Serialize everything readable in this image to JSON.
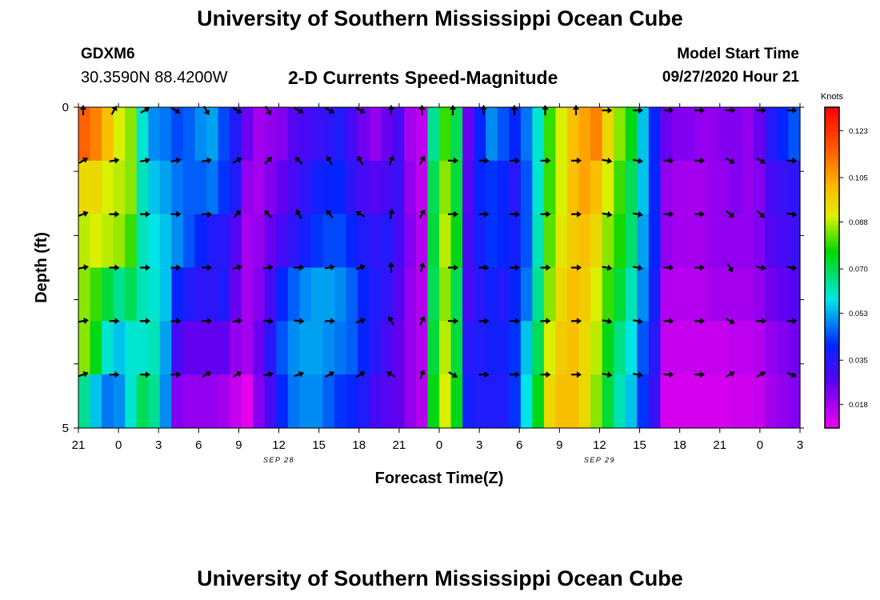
{
  "header": {
    "site_title": "University of Southern Mississippi Ocean Cube",
    "station_id": "GDXM6",
    "station_coords": "30.3590N 88.4200W",
    "chart_title": "2-D Currents Speed-Magnitude",
    "model_label": "Model Start Time",
    "model_time": "09/27/2020 Hour 21"
  },
  "footer": {
    "site_title": "University of Southern Mississippi Ocean Cube"
  },
  "chart_data": {
    "type": "heatmap",
    "title": "2-D Currents Speed-Magnitude",
    "xlabel": "Forecast Time(Z)",
    "ylabel": "Depth (ft)",
    "x_tick_labels": [
      "21",
      "0",
      "3",
      "6",
      "9",
      "12",
      "15",
      "18",
      "21",
      "0",
      "3",
      "6",
      "9",
      "12",
      "15",
      "18",
      "21",
      "0",
      "3"
    ],
    "date_labels": [
      {
        "text": "SEP 28",
        "tick_index": 5
      },
      {
        "text": "SEP 29",
        "tick_index": 13
      }
    ],
    "y_tick_labels": [
      "0",
      "",
      "",
      "",
      "",
      "5"
    ],
    "depth_range_ft": [
      0,
      5
    ],
    "colorbar": {
      "unit_label": "Knots",
      "ticks": [
        "0.123",
        "0.105",
        "0.088",
        "0.070",
        "0.053",
        "0.035",
        "0.018"
      ],
      "min": 0.009,
      "max": 0.132
    },
    "speed_knots_by_depth": [
      [
        0.115,
        0.11,
        0.1,
        0.09,
        0.085,
        0.06,
        0.05,
        0.048,
        0.044,
        0.046,
        0.05,
        0.052,
        0.044,
        0.036,
        0.025,
        0.018,
        0.02,
        0.022,
        0.028,
        0.03,
        0.032,
        0.034,
        0.036,
        0.03,
        0.024,
        0.02,
        0.025,
        0.03,
        0.018,
        0.015,
        0.065,
        0.08,
        0.07,
        0.025,
        0.04,
        0.05,
        0.045,
        0.04,
        0.048,
        0.06,
        0.08,
        0.09,
        0.1,
        0.105,
        0.11,
        0.095,
        0.085,
        0.075,
        0.055,
        0.04,
        0.025,
        0.022,
        0.022,
        0.02,
        0.02,
        0.022,
        0.022,
        0.02,
        0.025,
        0.035,
        0.04,
        0.045
      ],
      [
        0.095,
        0.095,
        0.09,
        0.088,
        0.085,
        0.062,
        0.055,
        0.052,
        0.048,
        0.046,
        0.046,
        0.048,
        0.042,
        0.036,
        0.02,
        0.018,
        0.022,
        0.026,
        0.03,
        0.034,
        0.038,
        0.04,
        0.04,
        0.034,
        0.03,
        0.028,
        0.03,
        0.032,
        0.02,
        0.015,
        0.07,
        0.085,
        0.072,
        0.028,
        0.04,
        0.042,
        0.04,
        0.035,
        0.045,
        0.06,
        0.08,
        0.09,
        0.1,
        0.105,
        0.1,
        0.09,
        0.08,
        0.07,
        0.055,
        0.04,
        0.02,
        0.018,
        0.018,
        0.018,
        0.02,
        0.02,
        0.022,
        0.02,
        0.022,
        0.03,
        0.032,
        0.034
      ],
      [
        0.088,
        0.09,
        0.088,
        0.086,
        0.08,
        0.062,
        0.058,
        0.055,
        0.05,
        0.045,
        0.04,
        0.036,
        0.035,
        0.028,
        0.018,
        0.02,
        0.025,
        0.03,
        0.034,
        0.038,
        0.042,
        0.044,
        0.044,
        0.04,
        0.036,
        0.034,
        0.036,
        0.03,
        0.022,
        0.016,
        0.072,
        0.088,
        0.075,
        0.03,
        0.038,
        0.042,
        0.04,
        0.038,
        0.045,
        0.062,
        0.082,
        0.092,
        0.098,
        0.1,
        0.095,
        0.085,
        0.078,
        0.068,
        0.052,
        0.04,
        0.02,
        0.018,
        0.018,
        0.018,
        0.02,
        0.02,
        0.02,
        0.02,
        0.022,
        0.028,
        0.03,
        0.032
      ],
      [
        0.085,
        0.08,
        0.072,
        0.065,
        0.07,
        0.062,
        0.06,
        0.055,
        0.04,
        0.036,
        0.034,
        0.034,
        0.036,
        0.025,
        0.018,
        0.022,
        0.03,
        0.04,
        0.046,
        0.05,
        0.052,
        0.052,
        0.05,
        0.046,
        0.04,
        0.036,
        0.034,
        0.028,
        0.02,
        0.016,
        0.07,
        0.085,
        0.07,
        0.03,
        0.035,
        0.038,
        0.036,
        0.04,
        0.048,
        0.065,
        0.085,
        0.095,
        0.1,
        0.098,
        0.09,
        0.08,
        0.072,
        0.062,
        0.05,
        0.038,
        0.016,
        0.016,
        0.016,
        0.016,
        0.018,
        0.018,
        0.018,
        0.018,
        0.02,
        0.024,
        0.026,
        0.028
      ],
      [
        0.085,
        0.075,
        0.06,
        0.055,
        0.06,
        0.06,
        0.062,
        0.052,
        0.03,
        0.026,
        0.026,
        0.026,
        0.026,
        0.02,
        0.018,
        0.025,
        0.035,
        0.045,
        0.05,
        0.052,
        0.052,
        0.05,
        0.048,
        0.046,
        0.04,
        0.035,
        0.03,
        0.026,
        0.02,
        0.016,
        0.072,
        0.088,
        0.072,
        0.035,
        0.036,
        0.038,
        0.038,
        0.042,
        0.055,
        0.07,
        0.09,
        0.098,
        0.1,
        0.095,
        0.088,
        0.075,
        0.066,
        0.058,
        0.045,
        0.035,
        0.014,
        0.014,
        0.014,
        0.014,
        0.014,
        0.014,
        0.015,
        0.015,
        0.016,
        0.02,
        0.022,
        0.024
      ],
      [
        0.065,
        0.055,
        0.048,
        0.05,
        0.06,
        0.07,
        0.065,
        0.05,
        0.022,
        0.02,
        0.02,
        0.02,
        0.018,
        0.014,
        0.01,
        0.022,
        0.03,
        0.04,
        0.048,
        0.05,
        0.05,
        0.046,
        0.042,
        0.04,
        0.036,
        0.03,
        0.028,
        0.026,
        0.02,
        0.016,
        0.075,
        0.09,
        0.075,
        0.038,
        0.036,
        0.036,
        0.036,
        0.042,
        0.058,
        0.075,
        0.095,
        0.1,
        0.1,
        0.095,
        0.085,
        0.072,
        0.062,
        0.055,
        0.042,
        0.032,
        0.012,
        0.012,
        0.012,
        0.012,
        0.012,
        0.012,
        0.013,
        0.013,
        0.014,
        0.018,
        0.02,
        0.022
      ]
    ],
    "arrow_direction_deg_by_depth": [
      [
        0,
        30,
        60,
        120,
        150,
        120,
        150,
        120,
        120,
        120,
        0,
        0,
        0,
        0,
        0,
        0,
        0,
        90,
        90,
        90,
        90,
        90,
        90,
        90
      ],
      [
        60,
        80,
        80,
        80,
        80,
        60,
        45,
        315,
        330,
        330,
        20,
        30,
        90,
        90,
        90,
        90,
        90,
        100,
        100,
        90,
        90,
        120,
        120,
        90
      ],
      [
        70,
        90,
        90,
        90,
        90,
        45,
        315,
        330,
        320,
        300,
        10,
        30,
        90,
        90,
        90,
        90,
        90,
        100,
        100,
        90,
        90,
        130,
        130,
        100
      ],
      [
        80,
        90,
        90,
        90,
        90,
        75,
        80,
        90,
        80,
        70,
        0,
        15,
        90,
        90,
        90,
        90,
        90,
        100,
        100,
        90,
        90,
        150,
        100,
        100
      ],
      [
        80,
        90,
        90,
        90,
        90,
        80,
        95,
        95,
        90,
        70,
        330,
        25,
        90,
        90,
        90,
        90,
        90,
        100,
        100,
        90,
        90,
        120,
        90,
        90
      ],
      [
        70,
        90,
        90,
        90,
        60,
        60,
        80,
        70,
        60,
        60,
        300,
        20,
        120,
        90,
        90,
        90,
        90,
        100,
        100,
        90,
        90,
        60,
        60,
        110
      ]
    ]
  }
}
